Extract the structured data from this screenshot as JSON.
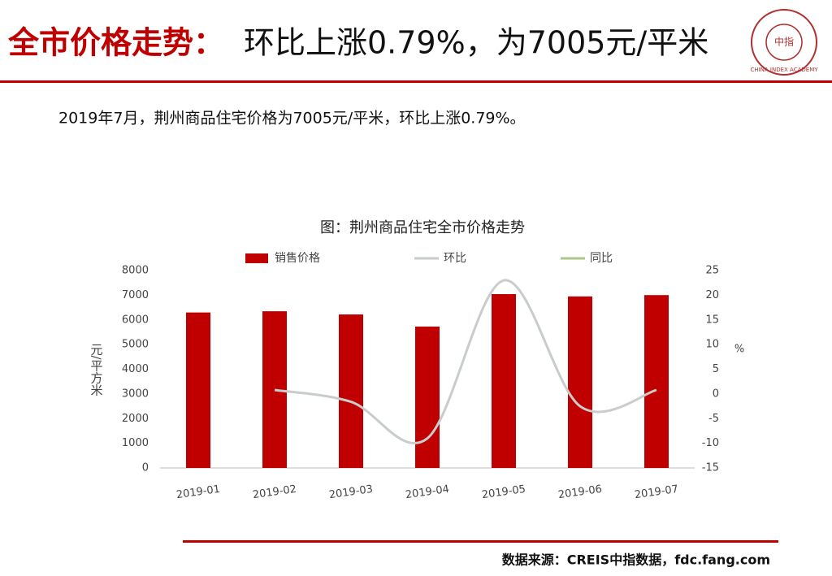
{
  "header": {
    "title_highlight": "全市价格走势：",
    "title_rest": "环比上涨0.79%，为7005元/平米",
    "logo_text": "CHINA INDEX ACADEMY",
    "logo_center": "中指"
  },
  "summary": "2019年7月，荆州商品住宅价格为7005元/平米，环比上涨0.79%。",
  "chart_data": {
    "type": "bar_line",
    "title": "图：荆州商品住宅全市价格走势",
    "categories": [
      "2019-01",
      "2019-02",
      "2019-03",
      "2019-04",
      "2019-05",
      "2019-06",
      "2019-07"
    ],
    "series": [
      {
        "name": "销售价格",
        "color": "#c00000",
        "values": [
          6300,
          6350,
          6220,
          5730,
          7045,
          6950,
          7005
        ]
      },
      {
        "name": "环比",
        "color": "#c8cccc",
        "axis": "y2",
        "values": [
          null,
          0.8,
          -1.6,
          -9,
          23,
          -2.5,
          0.79
        ]
      },
      {
        "name": "同比",
        "color": "#a9c98a",
        "axis": "y2",
        "values": [
          null,
          null,
          null,
          null,
          null,
          null,
          null
        ]
      }
    ],
    "ylabel": "元/平方米",
    "y2label": "%",
    "ylim": [
      0,
      8000
    ],
    "yticks": [
      0,
      1000,
      2000,
      3000,
      4000,
      5000,
      6000,
      7000,
      8000
    ],
    "y2lim": [
      -15,
      25
    ],
    "y2ticks": [
      -15,
      -10,
      -5,
      0,
      5,
      10,
      15,
      20,
      25
    ]
  },
  "footer": {
    "source": "数据来源：CREIS中指数据，fdc.fang.com"
  }
}
